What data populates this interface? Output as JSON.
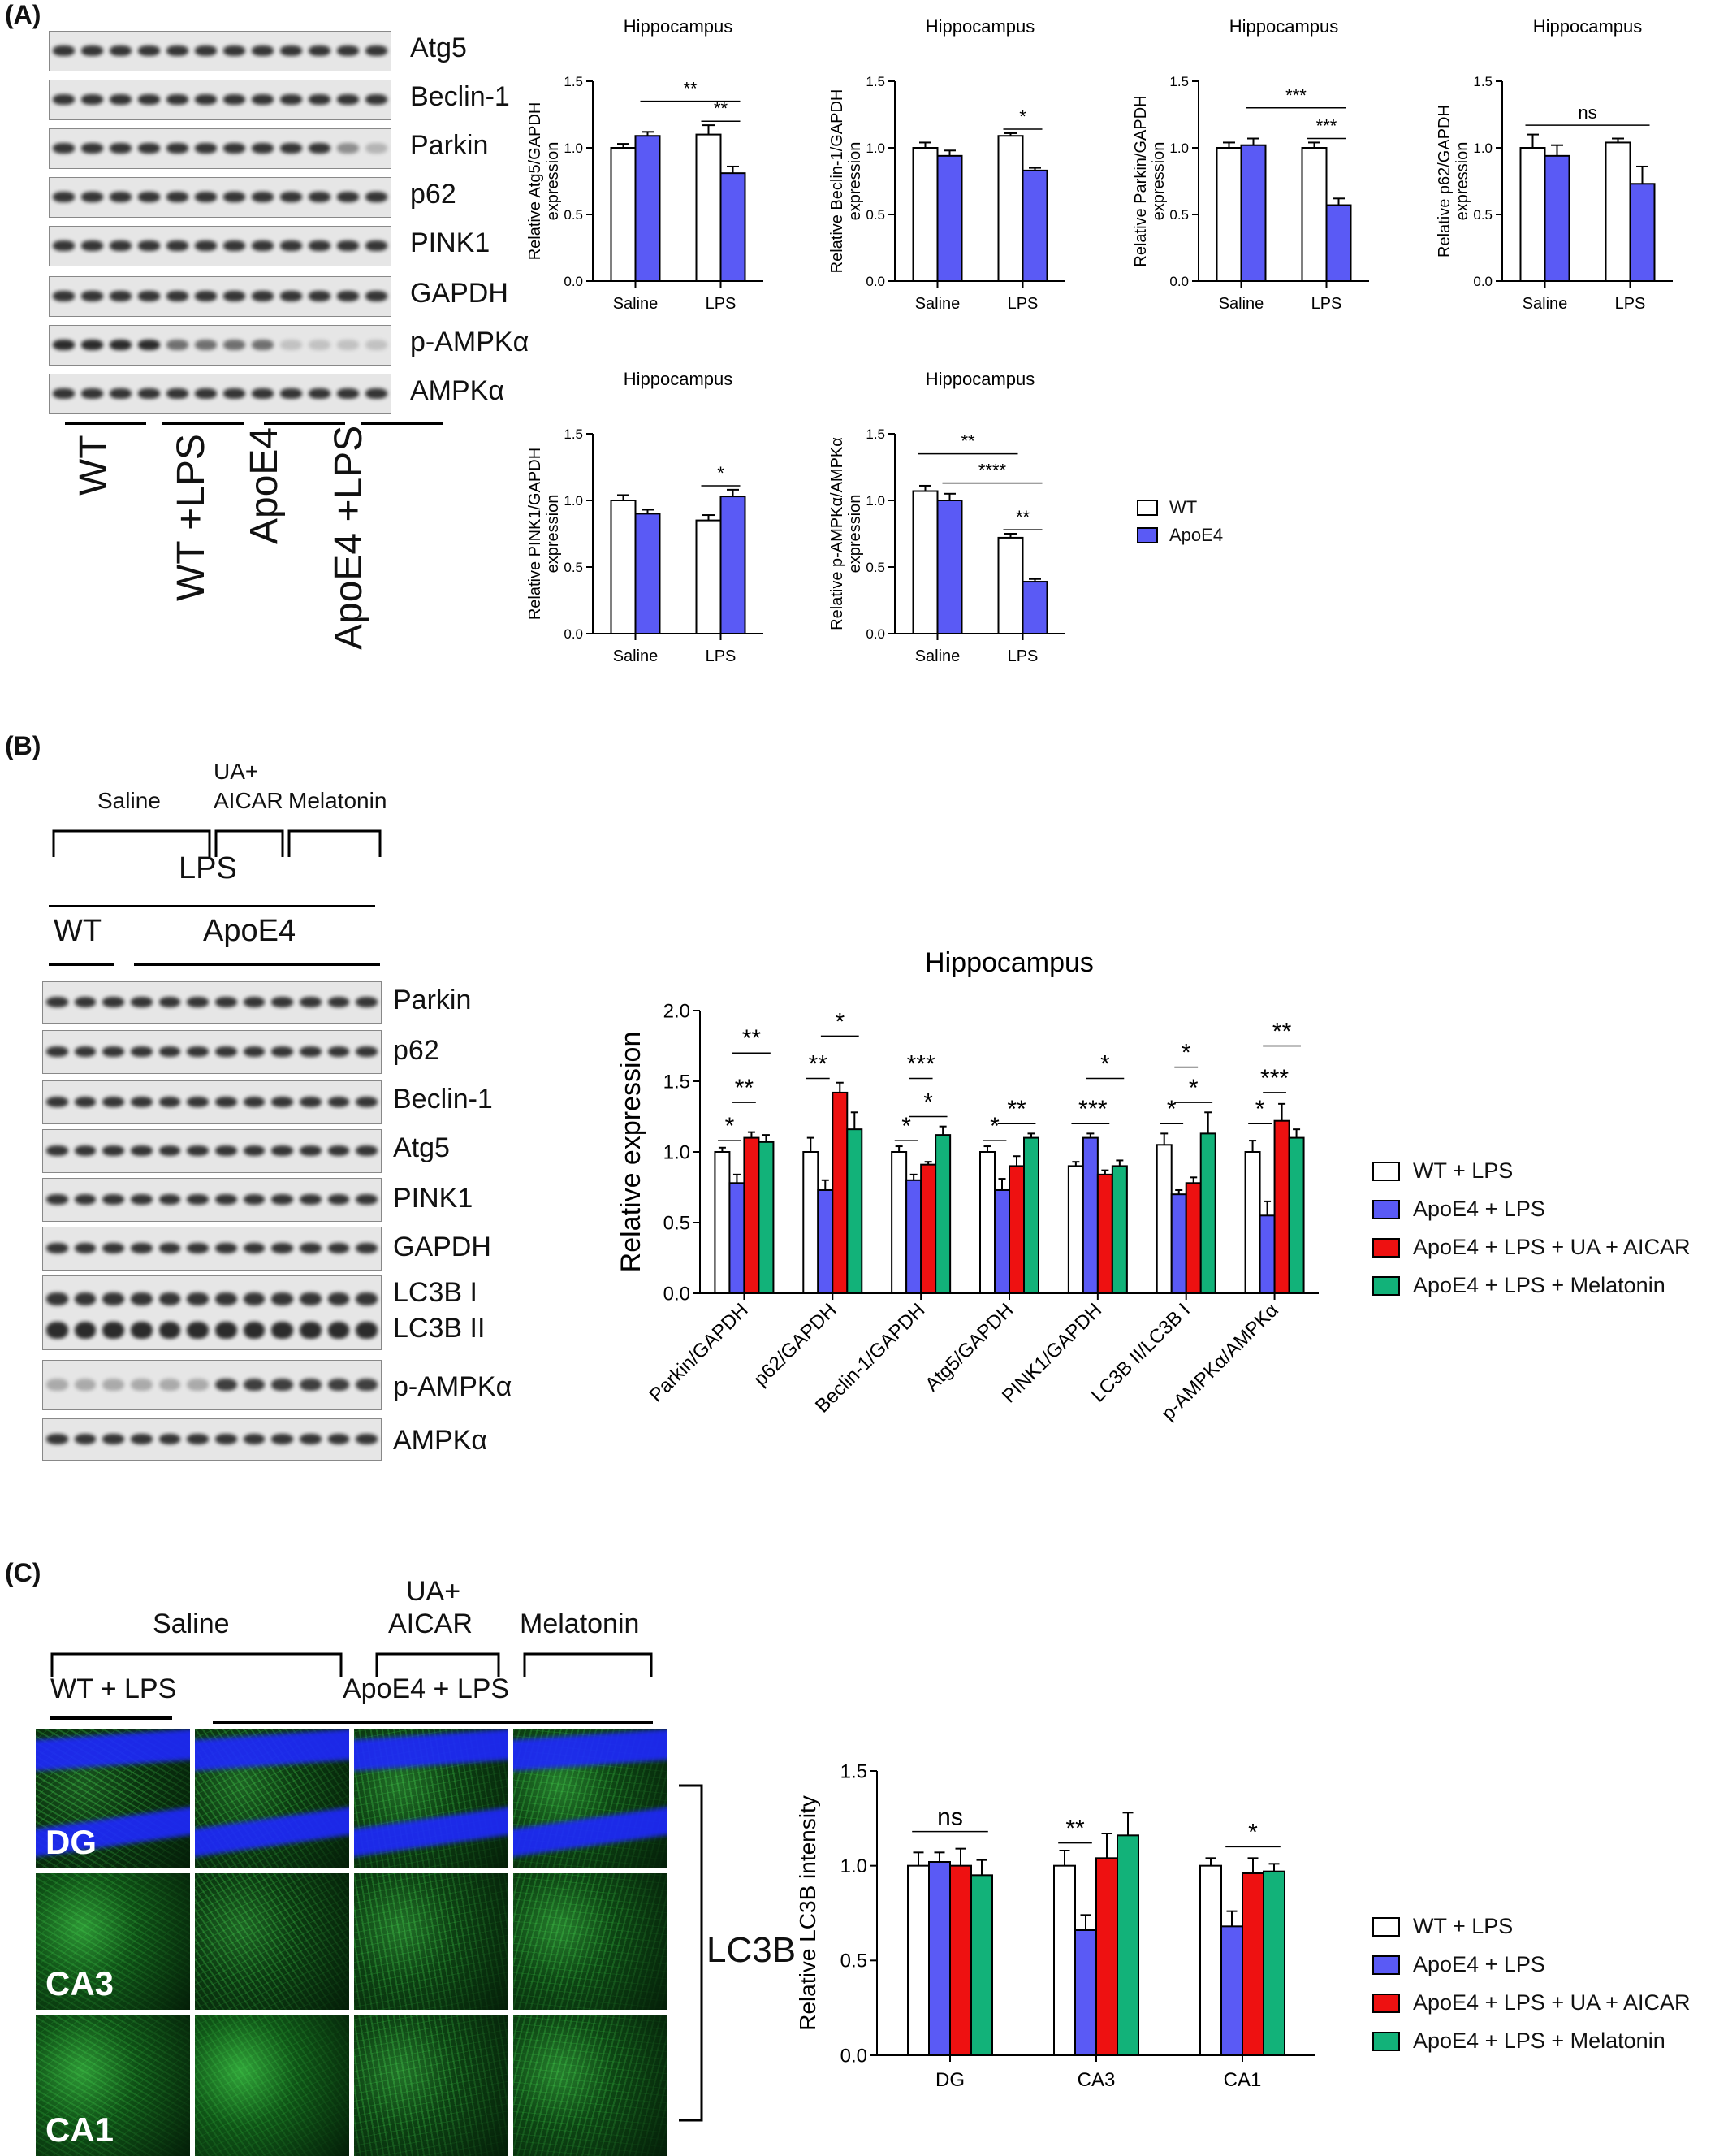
{
  "panels": {
    "a": "(A)",
    "b": "(B)",
    "c": "(C)"
  },
  "colors": {
    "wt": "#ffffff",
    "apoe4": "#5a5af5",
    "ua_aicar": "#ee1111",
    "melatonin": "#12b279"
  },
  "panel_a": {
    "blot_labels": [
      "Atg5",
      "Beclin-1",
      "Parkin",
      "p62",
      "PINK1",
      "GAPDH",
      "p-AMPKα",
      "AMPKα"
    ],
    "groups": [
      "WT",
      "WT +LPS",
      "ApoE4",
      "ApoE4 +LPS"
    ],
    "legend": [
      "WT",
      "ApoE4"
    ]
  },
  "panel_b": {
    "header": {
      "saline": "Saline",
      "ua_aicar": "UA+\nAICAR",
      "melatonin": "Melatonin",
      "lps": "LPS",
      "wt": "WT",
      "apoe4": "ApoE4"
    },
    "blot_labels": [
      "Parkin",
      "p62",
      "Beclin-1",
      "Atg5",
      "PINK1",
      "GAPDH",
      "LC3B I",
      "LC3B II",
      "p-AMPKα",
      "AMPKα"
    ],
    "legend": [
      "WT + LPS",
      "ApoE4 + LPS",
      "ApoE4 + LPS + UA + AICAR",
      "ApoE4 + LPS + Melatonin"
    ]
  },
  "panel_c": {
    "header": {
      "saline": "Saline",
      "ua": "UA+",
      "aicar": "AICAR",
      "melatonin": "Melatonin",
      "wt_lps": "WT + LPS",
      "apoe4_lps": "ApoE4 + LPS"
    },
    "regions": [
      "DG",
      "CA3",
      "CA1"
    ],
    "stain": "LC3B",
    "legend": [
      "WT + LPS",
      "ApoE4 + LPS",
      "ApoE4 + LPS + UA + AICAR",
      "ApoE4 + LPS + Melatonin"
    ]
  },
  "chart_data": [
    {
      "type": "bar",
      "title": "Hippocampus",
      "ylabel": "Relative Atg5/GAPDH\nexpression",
      "categories": [
        "Saline",
        "LPS"
      ],
      "ylim": [
        0,
        1.5
      ],
      "yticks": [
        "0.0",
        "0.5",
        "1.0",
        "1.5"
      ],
      "series": [
        {
          "name": "WT",
          "values": [
            1.0,
            1.1
          ],
          "err": [
            0.03,
            0.07
          ]
        },
        {
          "name": "ApoE4",
          "values": [
            1.09,
            0.81
          ],
          "err": [
            0.03,
            0.05
          ]
        }
      ],
      "annotations": [
        {
          "text": "**",
          "from": [
            0,
            1
          ],
          "to": [
            1,
            1
          ],
          "y": 1.35
        },
        {
          "text": "**",
          "from": [
            1,
            0
          ],
          "to": [
            1,
            1
          ],
          "y": 1.2
        }
      ]
    },
    {
      "type": "bar",
      "title": "Hippocampus",
      "ylabel": "Relative Beclin-1/GAPDH\nexpression",
      "categories": [
        "Saline",
        "LPS"
      ],
      "ylim": [
        0,
        1.5
      ],
      "yticks": [
        "0.0",
        "0.5",
        "1.0",
        "1.5"
      ],
      "series": [
        {
          "name": "WT",
          "values": [
            1.0,
            1.09
          ],
          "err": [
            0.04,
            0.02
          ]
        },
        {
          "name": "ApoE4",
          "values": [
            0.94,
            0.83
          ],
          "err": [
            0.04,
            0.02
          ]
        }
      ],
      "annotations": [
        {
          "text": "*",
          "from": [
            1,
            0
          ],
          "to": [
            1,
            1
          ],
          "y": 1.14
        }
      ]
    },
    {
      "type": "bar",
      "title": "Hippocampus",
      "ylabel": "Relative Parkin/GAPDH\nexpression",
      "categories": [
        "Saline",
        "LPS"
      ],
      "ylim": [
        0,
        1.5
      ],
      "yticks": [
        "0.0",
        "0.5",
        "1.0",
        "1.5"
      ],
      "series": [
        {
          "name": "WT",
          "values": [
            1.0,
            1.0
          ],
          "err": [
            0.04,
            0.04
          ]
        },
        {
          "name": "ApoE4",
          "values": [
            1.02,
            0.57
          ],
          "err": [
            0.05,
            0.05
          ]
        }
      ],
      "annotations": [
        {
          "text": "***",
          "from": [
            0,
            1
          ],
          "to": [
            1,
            1
          ],
          "y": 1.3
        },
        {
          "text": "***",
          "from": [
            1,
            0
          ],
          "to": [
            1,
            1
          ],
          "y": 1.07
        }
      ]
    },
    {
      "type": "bar",
      "title": "Hippocampus",
      "ylabel": "Relative p62/GAPDH\nexpression",
      "categories": [
        "Saline",
        "LPS"
      ],
      "ylim": [
        0,
        1.5
      ],
      "yticks": [
        "0.0",
        "0.5",
        "1.0",
        "1.5"
      ],
      "series": [
        {
          "name": "WT",
          "values": [
            1.0,
            1.04
          ],
          "err": [
            0.1,
            0.03
          ]
        },
        {
          "name": "ApoE4",
          "values": [
            0.94,
            0.73
          ],
          "err": [
            0.08,
            0.13
          ]
        }
      ],
      "annotations": [
        {
          "text": "ns",
          "from": [
            0,
            0
          ],
          "to": [
            1,
            1
          ],
          "y": 1.17
        }
      ]
    },
    {
      "type": "bar",
      "title": "Hippocampus",
      "ylabel": "Relative PINK1/GAPDH\nexpression",
      "categories": [
        "Saline",
        "LPS"
      ],
      "ylim": [
        0,
        1.5
      ],
      "yticks": [
        "0.0",
        "0.5",
        "1.0",
        "1.5"
      ],
      "series": [
        {
          "name": "WT",
          "values": [
            1.0,
            0.85
          ],
          "err": [
            0.04,
            0.04
          ]
        },
        {
          "name": "ApoE4",
          "values": [
            0.9,
            1.03
          ],
          "err": [
            0.03,
            0.05
          ]
        }
      ],
      "annotations": [
        {
          "text": "*",
          "from": [
            1,
            0
          ],
          "to": [
            1,
            1
          ],
          "y": 1.11
        }
      ]
    },
    {
      "type": "bar",
      "title": "Hippocampus",
      "ylabel": "Relative p-AMPKα/AMPKα\nexpression",
      "categories": [
        "Saline",
        "LPS"
      ],
      "ylim": [
        0,
        1.5
      ],
      "yticks": [
        "0.0",
        "0.5",
        "1.0",
        "1.5"
      ],
      "series": [
        {
          "name": "WT",
          "values": [
            1.07,
            0.72
          ],
          "err": [
            0.04,
            0.03
          ]
        },
        {
          "name": "ApoE4",
          "values": [
            1.0,
            0.39
          ],
          "err": [
            0.05,
            0.02
          ]
        }
      ],
      "annotations": [
        {
          "text": "**",
          "from": [
            0,
            0
          ],
          "to": [
            1,
            0
          ],
          "y": 1.35
        },
        {
          "text": "****",
          "from": [
            0,
            1
          ],
          "to": [
            1,
            1
          ],
          "y": 1.13
        },
        {
          "text": "**",
          "from": [
            1,
            0
          ],
          "to": [
            1,
            1
          ],
          "y": 0.78
        }
      ]
    },
    {
      "type": "bar",
      "title": "Hippocampus",
      "ylabel": "Relative expression",
      "categories": [
        "Parkin/GAPDH",
        "p62/GAPDH",
        "Beclin-1/GAPDH",
        "Atg5/GAPDH",
        "PINK1/GAPDH",
        "LC3B II/LC3B I",
        "p-AMPKα/AMPKα"
      ],
      "ylim": [
        0,
        2.0
      ],
      "yticks": [
        "0.0",
        "0.5",
        "1.0",
        "1.5",
        "2.0"
      ],
      "series": [
        {
          "name": "WT + LPS",
          "values": [
            1.0,
            1.0,
            1.0,
            1.0,
            0.9,
            1.05,
            1.0
          ],
          "err": [
            0.03,
            0.1,
            0.04,
            0.04,
            0.03,
            0.08,
            0.08
          ]
        },
        {
          "name": "ApoE4 + LPS",
          "values": [
            0.78,
            0.73,
            0.8,
            0.73,
            1.1,
            0.7,
            0.55
          ],
          "err": [
            0.06,
            0.07,
            0.04,
            0.08,
            0.03,
            0.03,
            0.1
          ]
        },
        {
          "name": "ApoE4 + LPS + UA + AICAR",
          "values": [
            1.1,
            1.42,
            0.91,
            0.9,
            0.84,
            0.78,
            1.22
          ],
          "err": [
            0.04,
            0.07,
            0.02,
            0.07,
            0.03,
            0.04,
            0.12
          ]
        },
        {
          "name": "ApoE4 + LPS + Melatonin",
          "values": [
            1.07,
            1.16,
            1.12,
            1.1,
            0.9,
            1.13,
            1.1
          ],
          "err": [
            0.05,
            0.12,
            0.06,
            0.03,
            0.04,
            0.15,
            0.06
          ]
        }
      ],
      "annotations": [
        {
          "text": "*",
          "cat": 0,
          "from": 0,
          "to": 1,
          "y": 1.08
        },
        {
          "text": "**",
          "cat": 0,
          "from": 1,
          "to": 2,
          "y": 1.35
        },
        {
          "text": "**",
          "cat": 0,
          "from": 1,
          "to": 3,
          "y": 1.7
        },
        {
          "text": "**",
          "cat": 1,
          "from": 0,
          "to": 1,
          "y": 1.52
        },
        {
          "text": "*",
          "cat": 1,
          "from": 1,
          "to": 3,
          "y": 1.82
        },
        {
          "text": "*",
          "cat": 2,
          "from": 0,
          "to": 1,
          "y": 1.08
        },
        {
          "text": "*",
          "cat": 2,
          "from": 1,
          "to": 3,
          "y": 1.25
        },
        {
          "text": "***",
          "cat": 2,
          "from": 1,
          "to": 2,
          "y": 1.52
        },
        {
          "text": "*",
          "cat": 3,
          "from": 0,
          "to": 1,
          "y": 1.08
        },
        {
          "text": "**",
          "cat": 3,
          "from": 1,
          "to": 3,
          "y": 1.2
        },
        {
          "text": "*",
          "cat": 4,
          "from": 0,
          "to": 1,
          "y": 1.2
        },
        {
          "text": "**",
          "cat": 4,
          "from": 1,
          "to": 2,
          "y": 1.2
        },
        {
          "text": "*",
          "cat": 4,
          "from": 1,
          "to": 3,
          "y": 1.52
        },
        {
          "text": "*",
          "cat": 5,
          "from": 0,
          "to": 1,
          "y": 1.2
        },
        {
          "text": "*",
          "cat": 5,
          "from": 1,
          "to": 3,
          "y": 1.35
        },
        {
          "text": "*",
          "cat": 5,
          "from": 1,
          "to": 2,
          "y": 1.6
        },
        {
          "text": "*",
          "cat": 6,
          "from": 0,
          "to": 1,
          "y": 1.2
        },
        {
          "text": "***",
          "cat": 6,
          "from": 1,
          "to": 2,
          "y": 1.42
        },
        {
          "text": "**",
          "cat": 6,
          "from": 1,
          "to": 3,
          "y": 1.75
        }
      ]
    },
    {
      "type": "bar",
      "ylabel": "Relative LC3B intensity",
      "categories": [
        "DG",
        "CA3",
        "CA1"
      ],
      "ylim": [
        0,
        1.5
      ],
      "yticks": [
        "0.0",
        "0.5",
        "1.0",
        "1.5"
      ],
      "series": [
        {
          "name": "WT + LPS",
          "values": [
            1.0,
            1.0,
            1.0
          ],
          "err": [
            0.07,
            0.08,
            0.04
          ]
        },
        {
          "name": "ApoE4 + LPS",
          "values": [
            1.02,
            0.66,
            0.68
          ],
          "err": [
            0.05,
            0.08,
            0.08
          ]
        },
        {
          "name": "ApoE4 + LPS + UA + AICAR",
          "values": [
            1.0,
            1.04,
            0.96
          ],
          "err": [
            0.09,
            0.13,
            0.08
          ]
        },
        {
          "name": "ApoE4 + LPS + Melatonin",
          "values": [
            0.95,
            1.16,
            0.97
          ],
          "err": [
            0.08,
            0.12,
            0.04
          ]
        }
      ],
      "annotations": [
        {
          "text": "ns",
          "cat0": 0,
          "s0": 0,
          "cat1": 0,
          "s1": 3,
          "y": 1.18
        },
        {
          "text": "**",
          "cat0": 1,
          "s0": 0,
          "cat1": 1,
          "s1": 1,
          "y": 1.12
        },
        {
          "text": "*",
          "cat0": 2,
          "s0": 1,
          "cat1": 2,
          "s1": 3,
          "y": 1.1
        }
      ]
    }
  ]
}
